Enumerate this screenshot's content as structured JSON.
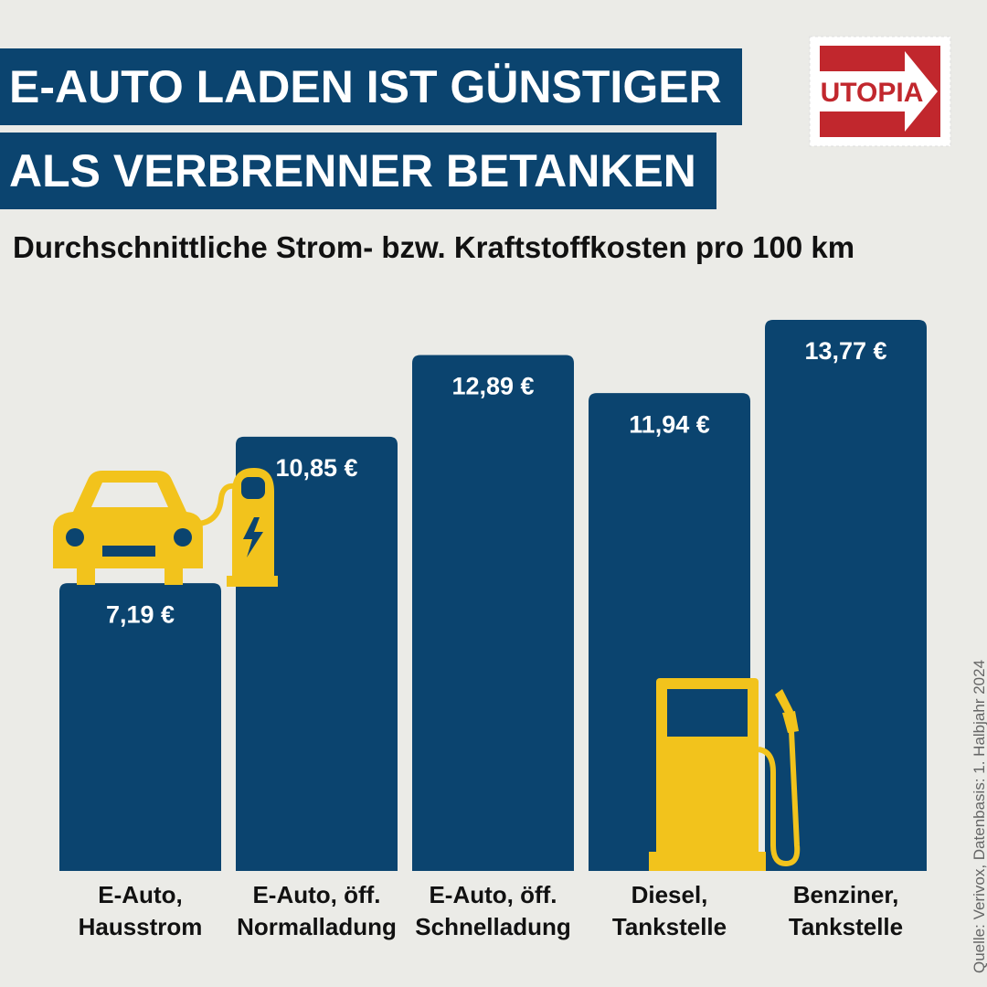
{
  "logo": "UTOPIA",
  "chart_data": {
    "type": "bar",
    "title": [
      "E-AUTO LADEN IST GÜNSTIGER",
      "ALS VERBRENNER BETANKEN"
    ],
    "subtitle": "Durchschnittliche Strom- bzw. Kraftstoffkosten pro 100 km",
    "source": "Quelle: Verivox, Datenbasis: 1. Halbjahr 2024",
    "categories": [
      "E-Auto,\nHausstrom",
      "E-Auto, öff.\nNormalladung",
      "E-Auto, öff.\nSchnelladung",
      "Diesel,\nTankstelle",
      "Benziner,\nTankstelle"
    ],
    "values": [
      7.19,
      10.85,
      12.89,
      11.94,
      13.77
    ],
    "value_labels": [
      "7,19 €",
      "10,85 €",
      "12,89 €",
      "11,94 €",
      "13,77 €"
    ],
    "color": "#0b446f"
  }
}
